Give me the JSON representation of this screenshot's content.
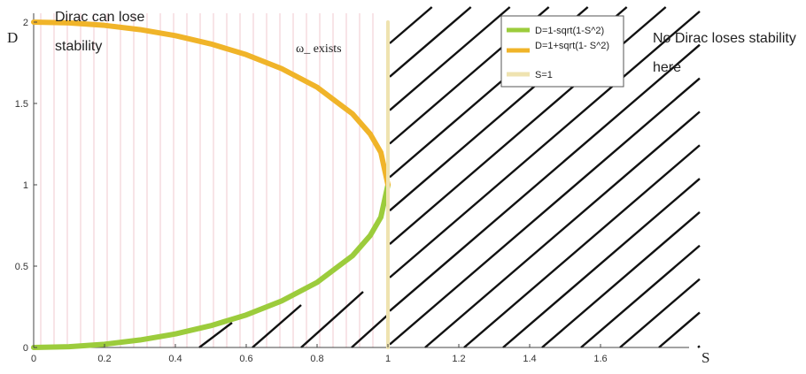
{
  "chart_data": {
    "type": "line",
    "xlabel": "S",
    "ylabel": "D",
    "xlim": [
      0,
      1.8
    ],
    "ylim": [
      0,
      2
    ],
    "x_ticks": [
      "0",
      "0.2",
      "0.4",
      "0.6",
      "0.8",
      "1",
      "1.2",
      "1.4",
      "1.6"
    ],
    "y_ticks": [
      "0",
      "0.5",
      "1",
      "1.5",
      "2"
    ],
    "series": [
      {
        "name": "D=1-sqrt(1-S^2)",
        "color": "#9ccc3c",
        "x": [
          0,
          0.1,
          0.2,
          0.3,
          0.4,
          0.5,
          0.6,
          0.7,
          0.8,
          0.9,
          0.95,
          0.98,
          1.0
        ],
        "values": [
          0,
          0.005,
          0.02,
          0.046,
          0.083,
          0.134,
          0.2,
          0.286,
          0.4,
          0.564,
          0.688,
          0.801,
          1.0
        ]
      },
      {
        "name": "D=1+sqrt(1- S^2)",
        "color": "#f0b429",
        "x": [
          0,
          0.1,
          0.2,
          0.3,
          0.4,
          0.5,
          0.6,
          0.7,
          0.8,
          0.9,
          0.95,
          0.98,
          1.0
        ],
        "values": [
          2,
          1.995,
          1.98,
          1.954,
          1.917,
          1.866,
          1.8,
          1.714,
          1.6,
          1.436,
          1.312,
          1.199,
          1.0
        ]
      },
      {
        "name": "S=1",
        "color": "#efe3b0",
        "x": [
          1,
          1
        ],
        "values": [
          0,
          2
        ]
      }
    ],
    "annotations": [
      {
        "text_lines": [
          "Dirac can lose",
          "stability"
        ]
      },
      {
        "text_lines": [
          "ω_ exists"
        ]
      },
      {
        "text_lines": [
          "No Dirac loses stability",
          "here"
        ]
      }
    ],
    "legend_position": "top-right",
    "grid": false,
    "left_region_fill": "vertical-lines",
    "right_region_fill": "diagonal-hatch"
  }
}
